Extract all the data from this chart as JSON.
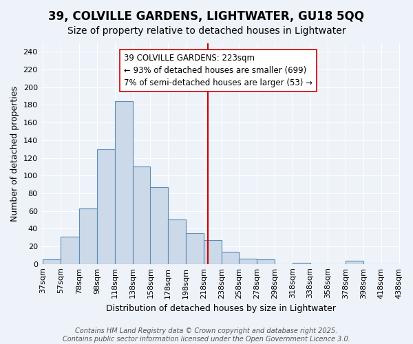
{
  "title": "39, COLVILLE GARDENS, LIGHTWATER, GU18 5QQ",
  "subtitle": "Size of property relative to detached houses in Lightwater",
  "xlabel": "Distribution of detached houses by size in Lightwater",
  "ylabel": "Number of detached properties",
  "bar_values": [
    5,
    31,
    63,
    130,
    184,
    110,
    87,
    50,
    35,
    27,
    14,
    6,
    5,
    0,
    1,
    0,
    0,
    4,
    0,
    0
  ],
  "bin_labels": [
    "37sqm",
    "57sqm",
    "78sqm",
    "98sqm",
    "118sqm",
    "138sqm",
    "158sqm",
    "178sqm",
    "198sqm",
    "218sqm",
    "238sqm",
    "258sqm",
    "278sqm",
    "298sqm",
    "318sqm",
    "338sqm",
    "358sqm",
    "378sqm",
    "398sqm",
    "418sqm",
    "438sqm"
  ],
  "bar_edges": [
    37,
    57,
    78,
    98,
    118,
    138,
    158,
    178,
    198,
    218,
    238,
    258,
    278,
    298,
    318,
    338,
    358,
    378,
    398,
    418,
    438
  ],
  "bar_color": "#ccd9e8",
  "bar_edge_color": "#5b8db8",
  "vline_x": 223,
  "vline_color": "#cc0000",
  "annotation_text": "39 COLVILLE GARDENS: 223sqm\n← 93% of detached houses are smaller (699)\n7% of semi-detached houses are larger (53) →",
  "annotation_box_color": "#ffffff",
  "annotation_box_edge": "#cc0000",
  "ylim": [
    0,
    250
  ],
  "yticks": [
    0,
    20,
    40,
    60,
    80,
    100,
    120,
    140,
    160,
    180,
    200,
    220,
    240
  ],
  "bg_color": "#eef2f9",
  "footer": "Contains HM Land Registry data © Crown copyright and database right 2025.\nContains public sector information licensed under the Open Government Licence 3.0.",
  "title_fontsize": 12,
  "subtitle_fontsize": 10,
  "axis_label_fontsize": 9,
  "tick_fontsize": 8,
  "annotation_fontsize": 8.5,
  "footer_fontsize": 7
}
